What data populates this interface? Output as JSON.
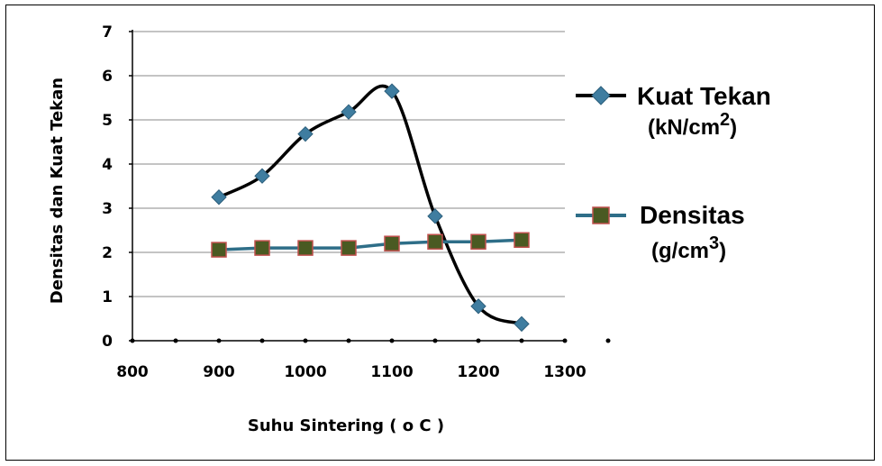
{
  "chart_data": {
    "type": "line",
    "xlabel": "Suhu Sintering ( o C )",
    "ylabel": "Densitas dan Kuat Tekan",
    "xlim": [
      800,
      1300
    ],
    "ylim": [
      0,
      7
    ],
    "x_ticks": [
      "800",
      "900",
      "1000",
      "1100",
      "1200",
      "1300"
    ],
    "y_ticks": [
      "0",
      "1",
      "2",
      "3",
      "4",
      "5",
      "6",
      "7"
    ],
    "grid": true,
    "legend_position": "right",
    "series": [
      {
        "name_main": "Kuat Tekan",
        "name_unit": "(kN/cm",
        "name_sup": "2",
        "name_close": ")",
        "marker": "diamond",
        "line_color": "#000000",
        "marker_color": "#3f7da0",
        "smooth": true,
        "x": [
          900,
          950,
          1000,
          1050,
          1100,
          1150,
          1200,
          1250
        ],
        "y": [
          3.25,
          3.73,
          4.68,
          5.18,
          5.65,
          2.82,
          0.78,
          0.38
        ]
      },
      {
        "name_main": "Densitas",
        "name_unit": "(g/cm",
        "name_sup": "3",
        "name_close": ")",
        "marker": "square",
        "line_color": "#2e6e88",
        "marker_color": "#4a5a22",
        "marker_edge": "#c0504d",
        "smooth": false,
        "x": [
          900,
          950,
          1000,
          1050,
          1100,
          1150,
          1200,
          1250
        ],
        "y": [
          2.06,
          2.1,
          2.1,
          2.1,
          2.2,
          2.24,
          2.24,
          2.28
        ]
      }
    ]
  }
}
